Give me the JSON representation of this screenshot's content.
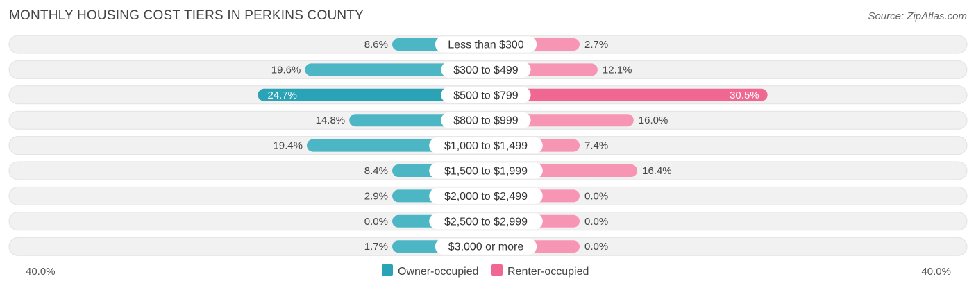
{
  "chart_data": {
    "type": "bar",
    "orientation": "horizontal-diverging",
    "title": "MONTHLY HOUSING COST TIERS IN PERKINS COUNTY",
    "source": "Source: ZipAtlas.com",
    "categories": [
      "Less than $300",
      "$300 to $499",
      "$500 to $799",
      "$800 to $999",
      "$1,000 to $1,499",
      "$1,500 to $1,999",
      "$2,000 to $2,499",
      "$2,500 to $2,999",
      "$3,000 or more"
    ],
    "series": [
      {
        "name": "Owner-occupied",
        "color": "#4db6c4",
        "highlight_color": "#2ba3b7",
        "values": [
          8.6,
          19.6,
          24.7,
          14.8,
          19.4,
          8.4,
          2.9,
          0.0,
          1.7
        ],
        "labels": [
          "8.6%",
          "19.6%",
          "24.7%",
          "14.8%",
          "19.4%",
          "8.4%",
          "2.9%",
          "0.0%",
          "1.7%"
        ]
      },
      {
        "name": "Renter-occupied",
        "color": "#f795b5",
        "highlight_color": "#f06892",
        "values": [
          2.7,
          12.1,
          30.5,
          16.0,
          7.4,
          16.4,
          0.0,
          0.0,
          0.0
        ],
        "labels": [
          "2.7%",
          "12.1%",
          "30.5%",
          "16.0%",
          "7.4%",
          "16.4%",
          "0.0%",
          "0.0%",
          "0.0%"
        ]
      }
    ],
    "xlim": [
      -40,
      40
    ],
    "axis_labels": {
      "left": "40.0%",
      "right": "40.0%"
    },
    "legend_position": "bottom-center"
  }
}
